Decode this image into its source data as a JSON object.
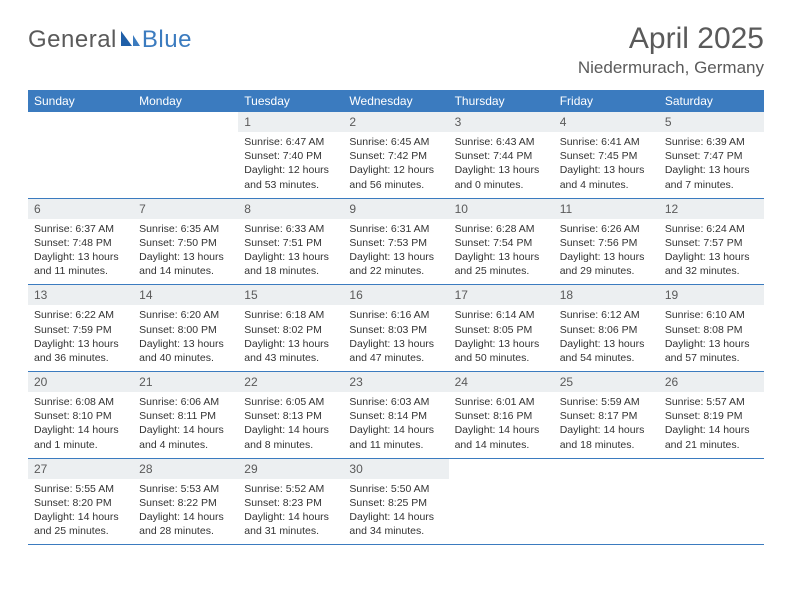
{
  "logo": {
    "text1": "General",
    "text2": "Blue"
  },
  "title": "April 2025",
  "location": "Niedermurach, Germany",
  "colors": {
    "header_bg": "#3b7bbf",
    "header_fg": "#ffffff",
    "daynum_bg": "#eceff1",
    "text": "#333333",
    "muted": "#5a5a5a",
    "rule": "#3b7bbf",
    "page_bg": "#ffffff"
  },
  "weekdays": [
    "Sunday",
    "Monday",
    "Tuesday",
    "Wednesday",
    "Thursday",
    "Friday",
    "Saturday"
  ],
  "weeks": [
    [
      {
        "n": "",
        "sr": "",
        "ss": "",
        "dl": ""
      },
      {
        "n": "",
        "sr": "",
        "ss": "",
        "dl": ""
      },
      {
        "n": "1",
        "sr": "Sunrise: 6:47 AM",
        "ss": "Sunset: 7:40 PM",
        "dl": "Daylight: 12 hours and 53 minutes."
      },
      {
        "n": "2",
        "sr": "Sunrise: 6:45 AM",
        "ss": "Sunset: 7:42 PM",
        "dl": "Daylight: 12 hours and 56 minutes."
      },
      {
        "n": "3",
        "sr": "Sunrise: 6:43 AM",
        "ss": "Sunset: 7:44 PM",
        "dl": "Daylight: 13 hours and 0 minutes."
      },
      {
        "n": "4",
        "sr": "Sunrise: 6:41 AM",
        "ss": "Sunset: 7:45 PM",
        "dl": "Daylight: 13 hours and 4 minutes."
      },
      {
        "n": "5",
        "sr": "Sunrise: 6:39 AM",
        "ss": "Sunset: 7:47 PM",
        "dl": "Daylight: 13 hours and 7 minutes."
      }
    ],
    [
      {
        "n": "6",
        "sr": "Sunrise: 6:37 AM",
        "ss": "Sunset: 7:48 PM",
        "dl": "Daylight: 13 hours and 11 minutes."
      },
      {
        "n": "7",
        "sr": "Sunrise: 6:35 AM",
        "ss": "Sunset: 7:50 PM",
        "dl": "Daylight: 13 hours and 14 minutes."
      },
      {
        "n": "8",
        "sr": "Sunrise: 6:33 AM",
        "ss": "Sunset: 7:51 PM",
        "dl": "Daylight: 13 hours and 18 minutes."
      },
      {
        "n": "9",
        "sr": "Sunrise: 6:31 AM",
        "ss": "Sunset: 7:53 PM",
        "dl": "Daylight: 13 hours and 22 minutes."
      },
      {
        "n": "10",
        "sr": "Sunrise: 6:28 AM",
        "ss": "Sunset: 7:54 PM",
        "dl": "Daylight: 13 hours and 25 minutes."
      },
      {
        "n": "11",
        "sr": "Sunrise: 6:26 AM",
        "ss": "Sunset: 7:56 PM",
        "dl": "Daylight: 13 hours and 29 minutes."
      },
      {
        "n": "12",
        "sr": "Sunrise: 6:24 AM",
        "ss": "Sunset: 7:57 PM",
        "dl": "Daylight: 13 hours and 32 minutes."
      }
    ],
    [
      {
        "n": "13",
        "sr": "Sunrise: 6:22 AM",
        "ss": "Sunset: 7:59 PM",
        "dl": "Daylight: 13 hours and 36 minutes."
      },
      {
        "n": "14",
        "sr": "Sunrise: 6:20 AM",
        "ss": "Sunset: 8:00 PM",
        "dl": "Daylight: 13 hours and 40 minutes."
      },
      {
        "n": "15",
        "sr": "Sunrise: 6:18 AM",
        "ss": "Sunset: 8:02 PM",
        "dl": "Daylight: 13 hours and 43 minutes."
      },
      {
        "n": "16",
        "sr": "Sunrise: 6:16 AM",
        "ss": "Sunset: 8:03 PM",
        "dl": "Daylight: 13 hours and 47 minutes."
      },
      {
        "n": "17",
        "sr": "Sunrise: 6:14 AM",
        "ss": "Sunset: 8:05 PM",
        "dl": "Daylight: 13 hours and 50 minutes."
      },
      {
        "n": "18",
        "sr": "Sunrise: 6:12 AM",
        "ss": "Sunset: 8:06 PM",
        "dl": "Daylight: 13 hours and 54 minutes."
      },
      {
        "n": "19",
        "sr": "Sunrise: 6:10 AM",
        "ss": "Sunset: 8:08 PM",
        "dl": "Daylight: 13 hours and 57 minutes."
      }
    ],
    [
      {
        "n": "20",
        "sr": "Sunrise: 6:08 AM",
        "ss": "Sunset: 8:10 PM",
        "dl": "Daylight: 14 hours and 1 minute."
      },
      {
        "n": "21",
        "sr": "Sunrise: 6:06 AM",
        "ss": "Sunset: 8:11 PM",
        "dl": "Daylight: 14 hours and 4 minutes."
      },
      {
        "n": "22",
        "sr": "Sunrise: 6:05 AM",
        "ss": "Sunset: 8:13 PM",
        "dl": "Daylight: 14 hours and 8 minutes."
      },
      {
        "n": "23",
        "sr": "Sunrise: 6:03 AM",
        "ss": "Sunset: 8:14 PM",
        "dl": "Daylight: 14 hours and 11 minutes."
      },
      {
        "n": "24",
        "sr": "Sunrise: 6:01 AM",
        "ss": "Sunset: 8:16 PM",
        "dl": "Daylight: 14 hours and 14 minutes."
      },
      {
        "n": "25",
        "sr": "Sunrise: 5:59 AM",
        "ss": "Sunset: 8:17 PM",
        "dl": "Daylight: 14 hours and 18 minutes."
      },
      {
        "n": "26",
        "sr": "Sunrise: 5:57 AM",
        "ss": "Sunset: 8:19 PM",
        "dl": "Daylight: 14 hours and 21 minutes."
      }
    ],
    [
      {
        "n": "27",
        "sr": "Sunrise: 5:55 AM",
        "ss": "Sunset: 8:20 PM",
        "dl": "Daylight: 14 hours and 25 minutes."
      },
      {
        "n": "28",
        "sr": "Sunrise: 5:53 AM",
        "ss": "Sunset: 8:22 PM",
        "dl": "Daylight: 14 hours and 28 minutes."
      },
      {
        "n": "29",
        "sr": "Sunrise: 5:52 AM",
        "ss": "Sunset: 8:23 PM",
        "dl": "Daylight: 14 hours and 31 minutes."
      },
      {
        "n": "30",
        "sr": "Sunrise: 5:50 AM",
        "ss": "Sunset: 8:25 PM",
        "dl": "Daylight: 14 hours and 34 minutes."
      },
      {
        "n": "",
        "sr": "",
        "ss": "",
        "dl": ""
      },
      {
        "n": "",
        "sr": "",
        "ss": "",
        "dl": ""
      },
      {
        "n": "",
        "sr": "",
        "ss": "",
        "dl": ""
      }
    ]
  ]
}
